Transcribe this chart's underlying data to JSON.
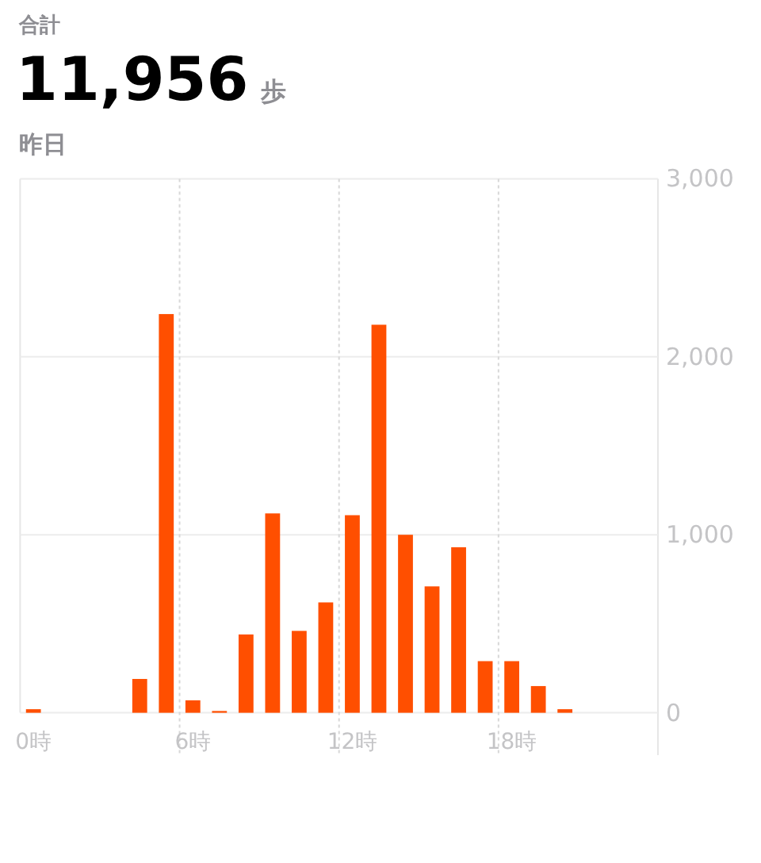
{
  "chart_data": {
    "type": "bar",
    "title": "11,956",
    "subtitle": "昨日",
    "annotations": [
      "合計",
      "歩"
    ],
    "categories": [
      "0時",
      null,
      null,
      null,
      null,
      null,
      "6時",
      null,
      null,
      null,
      null,
      null,
      "12時",
      null,
      null,
      null,
      null,
      null,
      "18時",
      null,
      null,
      null,
      null,
      null
    ],
    "values": [
      20,
      null,
      null,
      null,
      190,
      2240,
      70,
      10,
      440,
      1120,
      460,
      620,
      1110,
      2180,
      1000,
      710,
      930,
      290,
      290,
      150,
      20,
      null,
      null,
      null
    ],
    "color": "#ff4f00",
    "ylim": [
      0,
      3000
    ],
    "yticks": [
      {
        "value": 0,
        "label": "0"
      },
      {
        "value": 1000,
        "label": "1,000"
      },
      {
        "value": 2000,
        "label": "2,000"
      },
      {
        "value": 3000,
        "label": "3,000"
      }
    ],
    "grid": true
  }
}
